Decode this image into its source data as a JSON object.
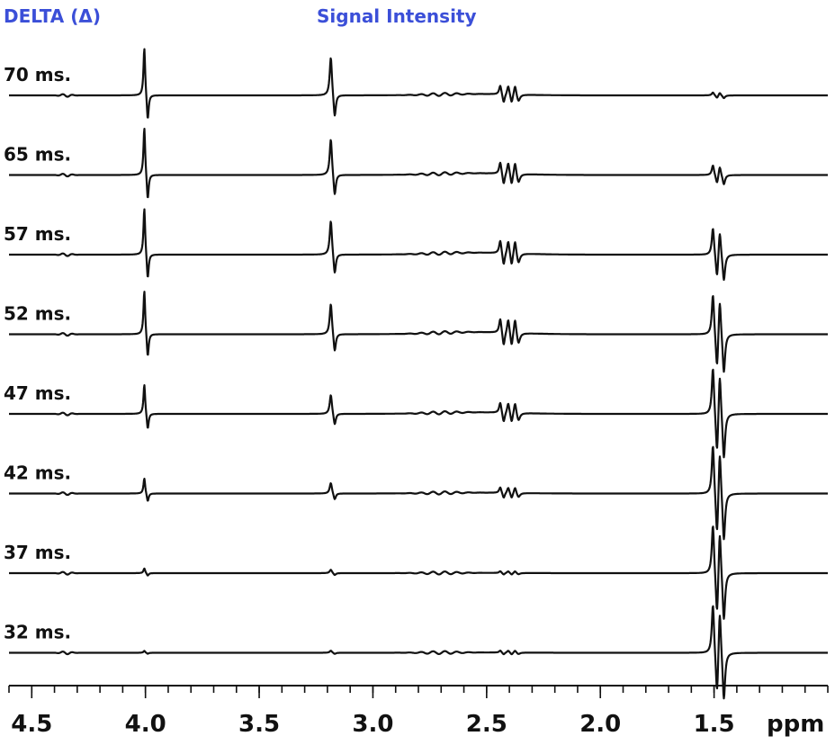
{
  "chart_data": {
    "type": "line",
    "header_left": "DELTA (Δ)",
    "header_center": "Signal Intensity",
    "xlabel": "ppm",
    "xlim": [
      4.6,
      1.0
    ],
    "x_reversed": true,
    "x_ticks": [
      "4.5",
      "4.0",
      "3.5",
      "3.0",
      "2.5",
      "2.0",
      "1.5"
    ],
    "x_tick_values": [
      4.5,
      4.0,
      3.5,
      3.0,
      2.5,
      2.0,
      1.5
    ],
    "minor_tick_step": 0.1,
    "peaks_ppm": [
      4.0,
      3.18,
      2.43,
      2.39,
      2.36,
      1.51,
      1.47
    ],
    "series": [
      {
        "name": "70 ms.",
        "delta_ms": 70,
        "amp_4_00": 1.0,
        "amp_3_18": 0.9,
        "amp_2_40": 0.35,
        "amp_1_49": 0.06
      },
      {
        "name": "65 ms.",
        "delta_ms": 65,
        "amp_4_00": 1.0,
        "amp_3_18": 0.85,
        "amp_2_40": 0.45,
        "amp_1_49": 0.2
      },
      {
        "name": "57 ms.",
        "delta_ms": 57,
        "amp_4_00": 0.98,
        "amp_3_18": 0.8,
        "amp_2_40": 0.5,
        "amp_1_49": 0.55
      },
      {
        "name": "52 ms.",
        "delta_ms": 52,
        "amp_4_00": 0.92,
        "amp_3_18": 0.72,
        "amp_2_40": 0.55,
        "amp_1_49": 0.82
      },
      {
        "name": "47 ms.",
        "delta_ms": 47,
        "amp_4_00": 0.62,
        "amp_3_18": 0.45,
        "amp_2_40": 0.4,
        "amp_1_49": 0.95
      },
      {
        "name": "42 ms.",
        "delta_ms": 42,
        "amp_4_00": 0.32,
        "amp_3_18": 0.25,
        "amp_2_40": 0.22,
        "amp_1_49": 1.0
      },
      {
        "name": "37 ms.",
        "delta_ms": 37,
        "amp_4_00": 0.1,
        "amp_3_18": 0.08,
        "amp_2_40": 0.07,
        "amp_1_49": 1.0
      },
      {
        "name": "32 ms.",
        "delta_ms": 32,
        "amp_4_00": 0.04,
        "amp_3_18": 0.05,
        "amp_2_40": 0.08,
        "amp_1_49": 1.0
      }
    ]
  }
}
